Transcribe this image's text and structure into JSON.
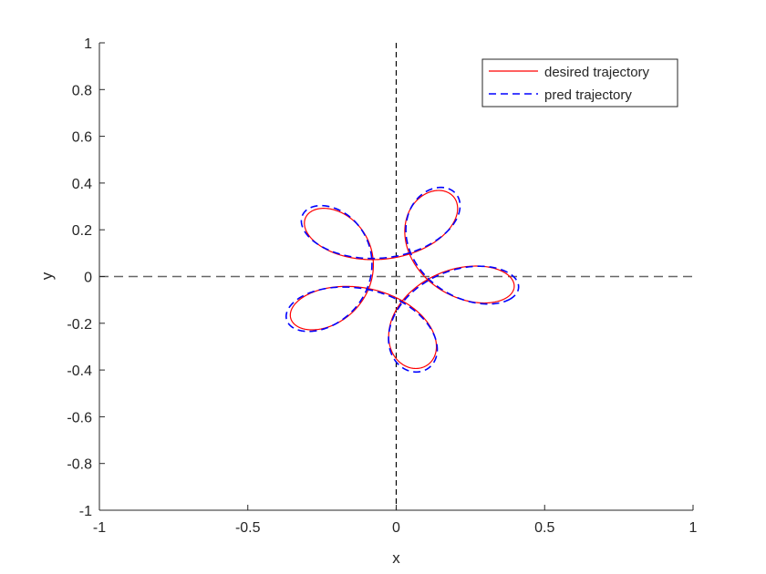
{
  "chart_data": {
    "type": "line",
    "xlabel": "x",
    "ylabel": "y",
    "xlim": [
      -1,
      1
    ],
    "ylim": [
      -1,
      1
    ],
    "xticks": [
      -1,
      -0.5,
      0,
      0.5,
      1
    ],
    "xtick_labels": [
      "-1",
      "-0.5",
      "0",
      "0.5",
      "1"
    ],
    "yticks": [
      1,
      0.8,
      0.6,
      0.4,
      0.2,
      0,
      -0.2,
      -0.4,
      -0.6,
      -0.8,
      -1
    ],
    "ytick_labels": [
      "1",
      "0.8",
      "0.6",
      "0.4",
      "0.2",
      "0",
      "-0.2",
      "-0.4",
      "-0.6",
      "-0.8",
      "-1"
    ],
    "grid": false,
    "legend_position": "top-right",
    "reference_lines": [
      {
        "orientation": "horizontal",
        "value": 0,
        "style": "dashed",
        "color": "#666666"
      },
      {
        "orientation": "vertical",
        "value": 0,
        "style": "dashed",
        "color": "#000000"
      }
    ],
    "curve_model": {
      "form": "x = a*cos(t) + b*cos(k*t + p), y = a*sin(t) - b*sin(k*t + p)",
      "t_range": [
        0,
        6.2832
      ]
    },
    "series": [
      {
        "name": "desired trajectory",
        "color": "#ff0000",
        "style": "solid",
        "params": {
          "a": 0.24,
          "b": 0.16,
          "k": 4,
          "p": 0.6
        }
      },
      {
        "name": "pred trajectory",
        "color": "#0000ff",
        "style": "dashed",
        "params": {
          "a": 0.25,
          "b": 0.165,
          "k": 4,
          "p": 0.62
        }
      }
    ]
  }
}
